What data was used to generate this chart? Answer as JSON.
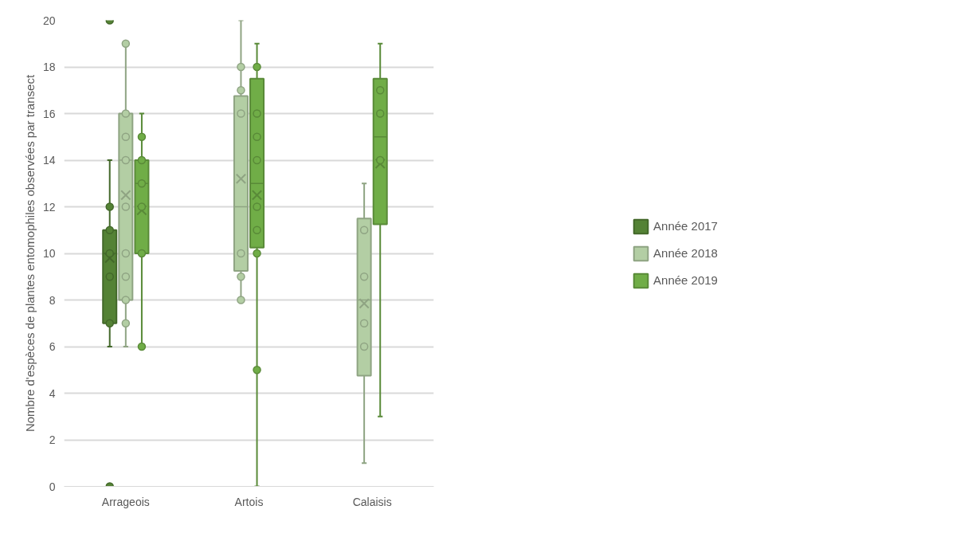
{
  "chart_data": {
    "type": "box",
    "ylabel": "Nombre d'espèces de plantes entomophiles observées par transect",
    "categories": [
      "Arrageois",
      "Artois",
      "Calaisis"
    ],
    "ylim": [
      0,
      20
    ],
    "yticks": [
      0,
      2,
      4,
      6,
      8,
      10,
      12,
      14,
      16,
      18,
      20
    ],
    "grid": "y",
    "legend": "right",
    "marker": "circle",
    "series": [
      {
        "name": "Année 2017",
        "color": "#548235",
        "boxes": [
          {
            "low": 6,
            "q1": 7,
            "median": 10,
            "q3": 11,
            "high": 14,
            "mean": 9.8,
            "outliers": [
              20,
              12,
              11,
              10,
              9,
              7,
              0
            ]
          },
          null,
          null
        ]
      },
      {
        "name": "Année 2018",
        "color": "#b3cea4",
        "boxes": [
          {
            "low": 6,
            "q1": 8,
            "median": 14,
            "q3": 16,
            "high": 19,
            "mean": 12.5,
            "outliers": [
              19,
              16,
              15,
              14,
              12,
              10,
              9,
              8,
              7
            ]
          },
          {
            "low": 8,
            "q1": 9.25,
            "median": 12,
            "q3": 16.75,
            "high": 20,
            "mean": 13.2,
            "outliers": [
              18,
              17,
              16,
              10,
              9,
              8
            ]
          },
          {
            "low": 1,
            "q1": 4.75,
            "median": 8,
            "q3": 11.5,
            "high": 13,
            "mean": 7.85,
            "outliers": [
              11,
              9,
              7,
              6
            ]
          }
        ]
      },
      {
        "name": "Année 2019",
        "color": "#70ad47",
        "boxes": [
          {
            "low": 6,
            "q1": 10,
            "median": 13,
            "q3": 14,
            "high": 16,
            "mean": 11.85,
            "outliers": [
              15,
              14,
              13,
              12,
              10,
              6
            ]
          },
          {
            "low": 0,
            "q1": 10.25,
            "median": 13,
            "q3": 17.5,
            "high": 19,
            "mean": 12.5,
            "outliers": [
              18,
              16,
              15,
              14,
              12,
              11,
              10,
              5
            ]
          },
          {
            "low": 3,
            "q1": 11.25,
            "median": 15,
            "q3": 17.5,
            "high": 19,
            "mean": 13.85,
            "outliers": [
              17,
              16,
              14
            ]
          }
        ]
      }
    ]
  }
}
